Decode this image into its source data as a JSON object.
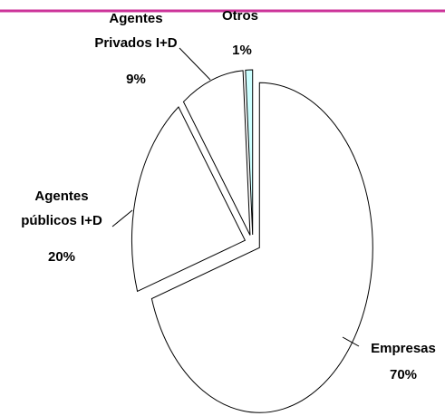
{
  "chart_data": {
    "type": "pie",
    "categories": [
      "Empresas",
      "Agentes públicos I+D",
      "Agentes Privados I+D",
      "Otros"
    ],
    "values": [
      70,
      20,
      9,
      1
    ],
    "value_labels": [
      "70%",
      "20%",
      "9%",
      "1%"
    ],
    "colors": [
      "#ffffff",
      "#ffffff",
      "#ffffff",
      "#ccffff"
    ]
  }
}
